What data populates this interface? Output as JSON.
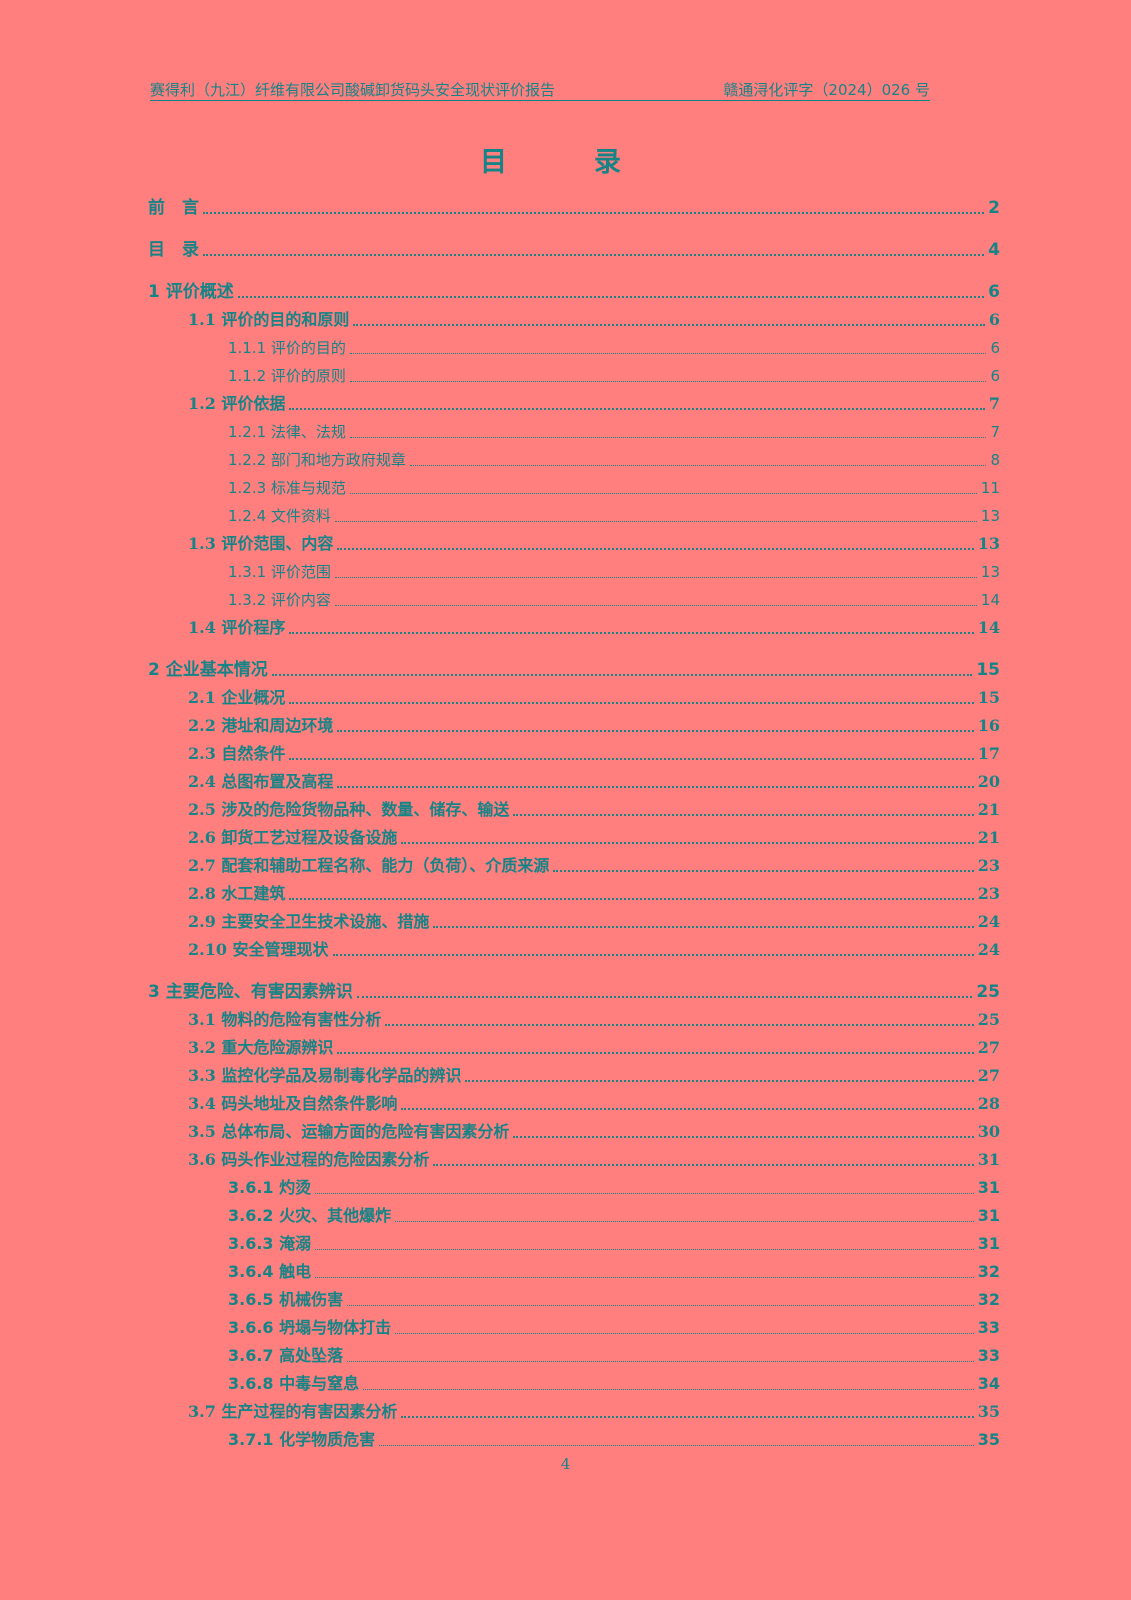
{
  "header": {
    "left": "赛得利（九江）纤维有限公司酸碱卸货码头安全现状评价报告",
    "right": "赣通浔化评字（2024）026 号"
  },
  "title": "目　录",
  "toc": [
    {
      "level": 0,
      "label": "前　言",
      "page": "2"
    },
    {
      "level": 0,
      "label": "目　录",
      "page": "4"
    },
    {
      "level": 0,
      "label": "1 评价概述",
      "page": "6"
    },
    {
      "level": 1,
      "label": "1.1 评价的目的和原则",
      "page": "6"
    },
    {
      "level": 2,
      "label": "1.1.1 评价的目的",
      "page": "6"
    },
    {
      "level": 2,
      "label": "1.1.2 评价的原则",
      "page": "6"
    },
    {
      "level": 1,
      "label": "1.2 评价依据",
      "page": "7"
    },
    {
      "level": 2,
      "label": "1.2.1 法律、法规",
      "page": "7"
    },
    {
      "level": 2,
      "label": "1.2.2 部门和地方政府规章",
      "page": "8"
    },
    {
      "level": 2,
      "label": "1.2.3  标准与规范",
      "page": "11"
    },
    {
      "level": 2,
      "label": "1.2.4 文件资料",
      "page": "13"
    },
    {
      "level": 1,
      "label": "1.3 评价范围、内容",
      "page": "13"
    },
    {
      "level": 2,
      "label": "1.3.1 评价范围",
      "page": "13"
    },
    {
      "level": 2,
      "label": "1.3.2 评价内容",
      "page": "14"
    },
    {
      "level": 1,
      "label": "1.4 评价程序",
      "page": "14"
    },
    {
      "level": 0,
      "label": "2 企业基本情况",
      "page": "15"
    },
    {
      "level": 1,
      "label": "2.1 企业概况",
      "page": "15"
    },
    {
      "level": 1,
      "label": "2.2 港址和周边环境",
      "page": "16"
    },
    {
      "level": 1,
      "label": "2.3 自然条件",
      "page": "17"
    },
    {
      "level": 1,
      "label": "2.4 总图布置及高程",
      "page": "20"
    },
    {
      "level": 1,
      "label": "2.5 涉及的危险货物品种、数量、储存、输送",
      "page": "21"
    },
    {
      "level": 1,
      "label": "2.6 卸货工艺过程及设备设施",
      "page": "21"
    },
    {
      "level": 1,
      "label": "2.7 配套和辅助工程名称、能力（负荷）、介质来源",
      "page": "23"
    },
    {
      "level": 1,
      "label": "2.8 水工建筑",
      "page": "23"
    },
    {
      "level": 1,
      "label": "2.9 主要安全卫生技术设施、措施",
      "page": "24"
    },
    {
      "level": 1,
      "label": "2.10 安全管理现状",
      "page": "24"
    },
    {
      "level": 0,
      "label": "3 主要危险、有害因素辨识",
      "page": "25"
    },
    {
      "level": 1,
      "label": "3.1 物料的危险有害性分析",
      "page": "25"
    },
    {
      "level": 1,
      "label": "3.2 重大危险源辨识",
      "page": "27"
    },
    {
      "level": 1,
      "label": "3.3 监控化学品及易制毒化学品的辨识",
      "page": "27"
    },
    {
      "level": 1,
      "label": "3.4 码头地址及自然条件影响",
      "page": "28"
    },
    {
      "level": 1,
      "label": "3.5 总体布局、运输方面的危险有害因素分析",
      "page": "30"
    },
    {
      "level": 1,
      "label": "3.6 码头作业过程的危险因素分析",
      "page": "31"
    },
    {
      "level": 2,
      "bold": true,
      "label": "3.6.1 灼烫",
      "page": "31"
    },
    {
      "level": 2,
      "bold": true,
      "label": "3.6.2 火灾、其他爆炸",
      "page": "31"
    },
    {
      "level": 2,
      "bold": true,
      "label": "3.6.3 淹溺",
      "page": "31"
    },
    {
      "level": 2,
      "bold": true,
      "label": "3.6.4 触电",
      "page": "32"
    },
    {
      "level": 2,
      "bold": true,
      "label": "3.6.5 机械伤害",
      "page": "32"
    },
    {
      "level": 2,
      "bold": true,
      "label": "3.6.6 坍塌与物体打击",
      "page": "33"
    },
    {
      "level": 2,
      "bold": true,
      "label": "3.6.7 高处坠落",
      "page": "33"
    },
    {
      "level": 2,
      "bold": true,
      "label": "3.6.8 中毒与窒息",
      "page": "34"
    },
    {
      "level": 1,
      "label": "3.7 生产过程的有害因素分析",
      "page": "35"
    },
    {
      "level": 2,
      "bold": true,
      "label": "3.7.1 化学物质危害",
      "page": "35"
    }
  ],
  "page_number": "4"
}
